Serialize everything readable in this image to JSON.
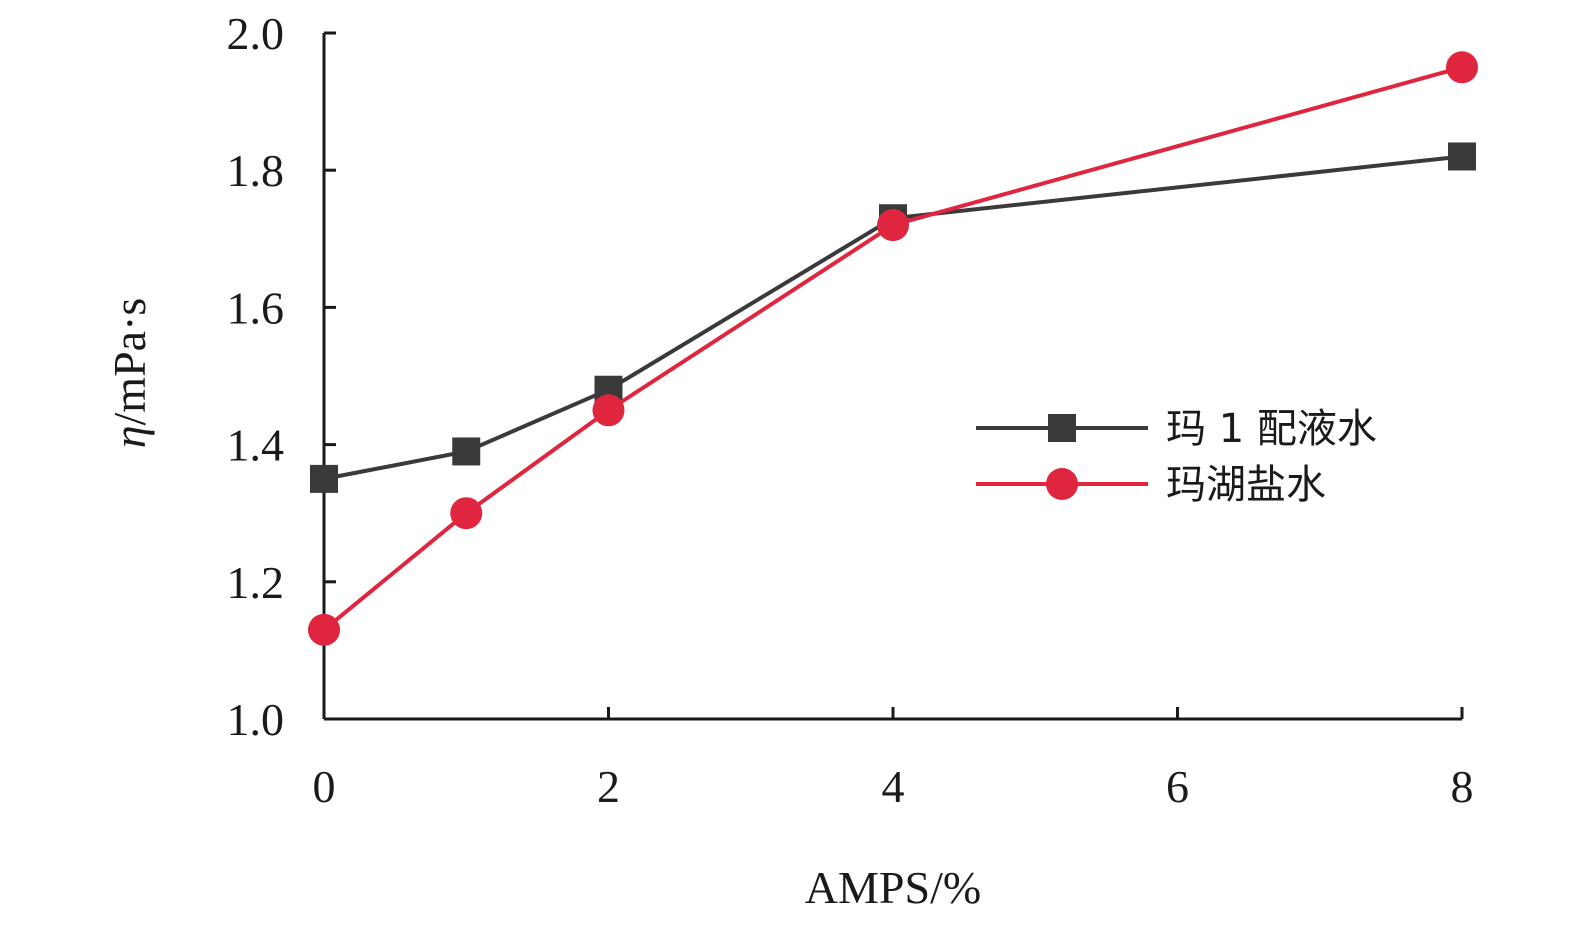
{
  "chart_data": {
    "type": "line",
    "title": "",
    "xlabel": "AMPS/%",
    "ylabel_symbol": "η",
    "ylabel_unit": "/mPa·s",
    "xlim": [
      0,
      8
    ],
    "ylim": [
      1.0,
      2.0
    ],
    "xticks": [
      0,
      2,
      4,
      6,
      8
    ],
    "xtick_labels": [
      "0",
      "2",
      "4",
      "6",
      "8"
    ],
    "yticks": [
      1.0,
      1.2,
      1.4,
      1.6,
      1.8,
      2.0
    ],
    "ytick_labels": [
      "1.0",
      "1.2",
      "1.4",
      "1.6",
      "1.8",
      "2.0"
    ],
    "grid": false,
    "legend_position": "right",
    "x": [
      0,
      1,
      2,
      4,
      8
    ],
    "series": [
      {
        "name": "玛 1 配液水",
        "marker": "square",
        "color": "#3a3a3a",
        "values": [
          1.35,
          1.39,
          1.48,
          1.73,
          1.82
        ]
      },
      {
        "name": "玛湖盐水",
        "marker": "circle",
        "color": "#e0263f",
        "values": [
          1.13,
          1.3,
          1.45,
          1.72,
          1.95
        ]
      }
    ]
  }
}
